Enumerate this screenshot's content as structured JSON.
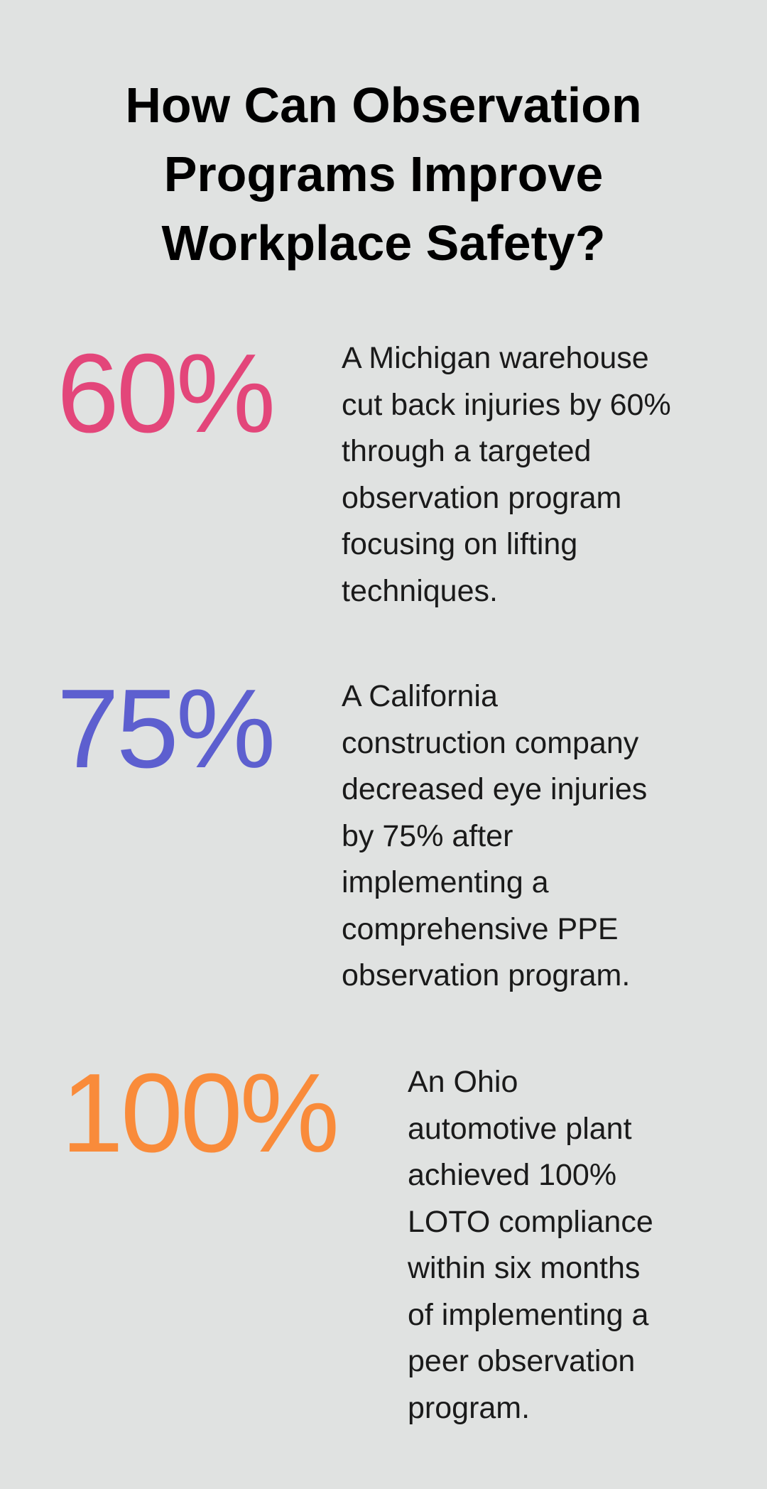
{
  "title_lines": [
    "How Can Observation",
    "Programs Improve",
    "Workplace Safety?"
  ],
  "stats": [
    {
      "value": "60%",
      "color": "#e3467a",
      "lines": [
        "A Michigan warehouse",
        "cut back injuries by 60%",
        "through a targeted",
        "observation program",
        "focusing on lifting",
        "techniques."
      ]
    },
    {
      "value": "75%",
      "color": "#5d5fcf",
      "lines": [
        "A California",
        "construction company",
        "decreased eye injuries",
        "by 75% after",
        "implementing a",
        "comprehensive PPE",
        "observation program."
      ]
    },
    {
      "value": "100%",
      "color": "#f98b3a",
      "lines": [
        "An Ohio",
        "automotive plant",
        "achieved 100%",
        "LOTO compliance",
        "within six months",
        "of implementing a",
        "peer observation",
        "program."
      ]
    }
  ]
}
